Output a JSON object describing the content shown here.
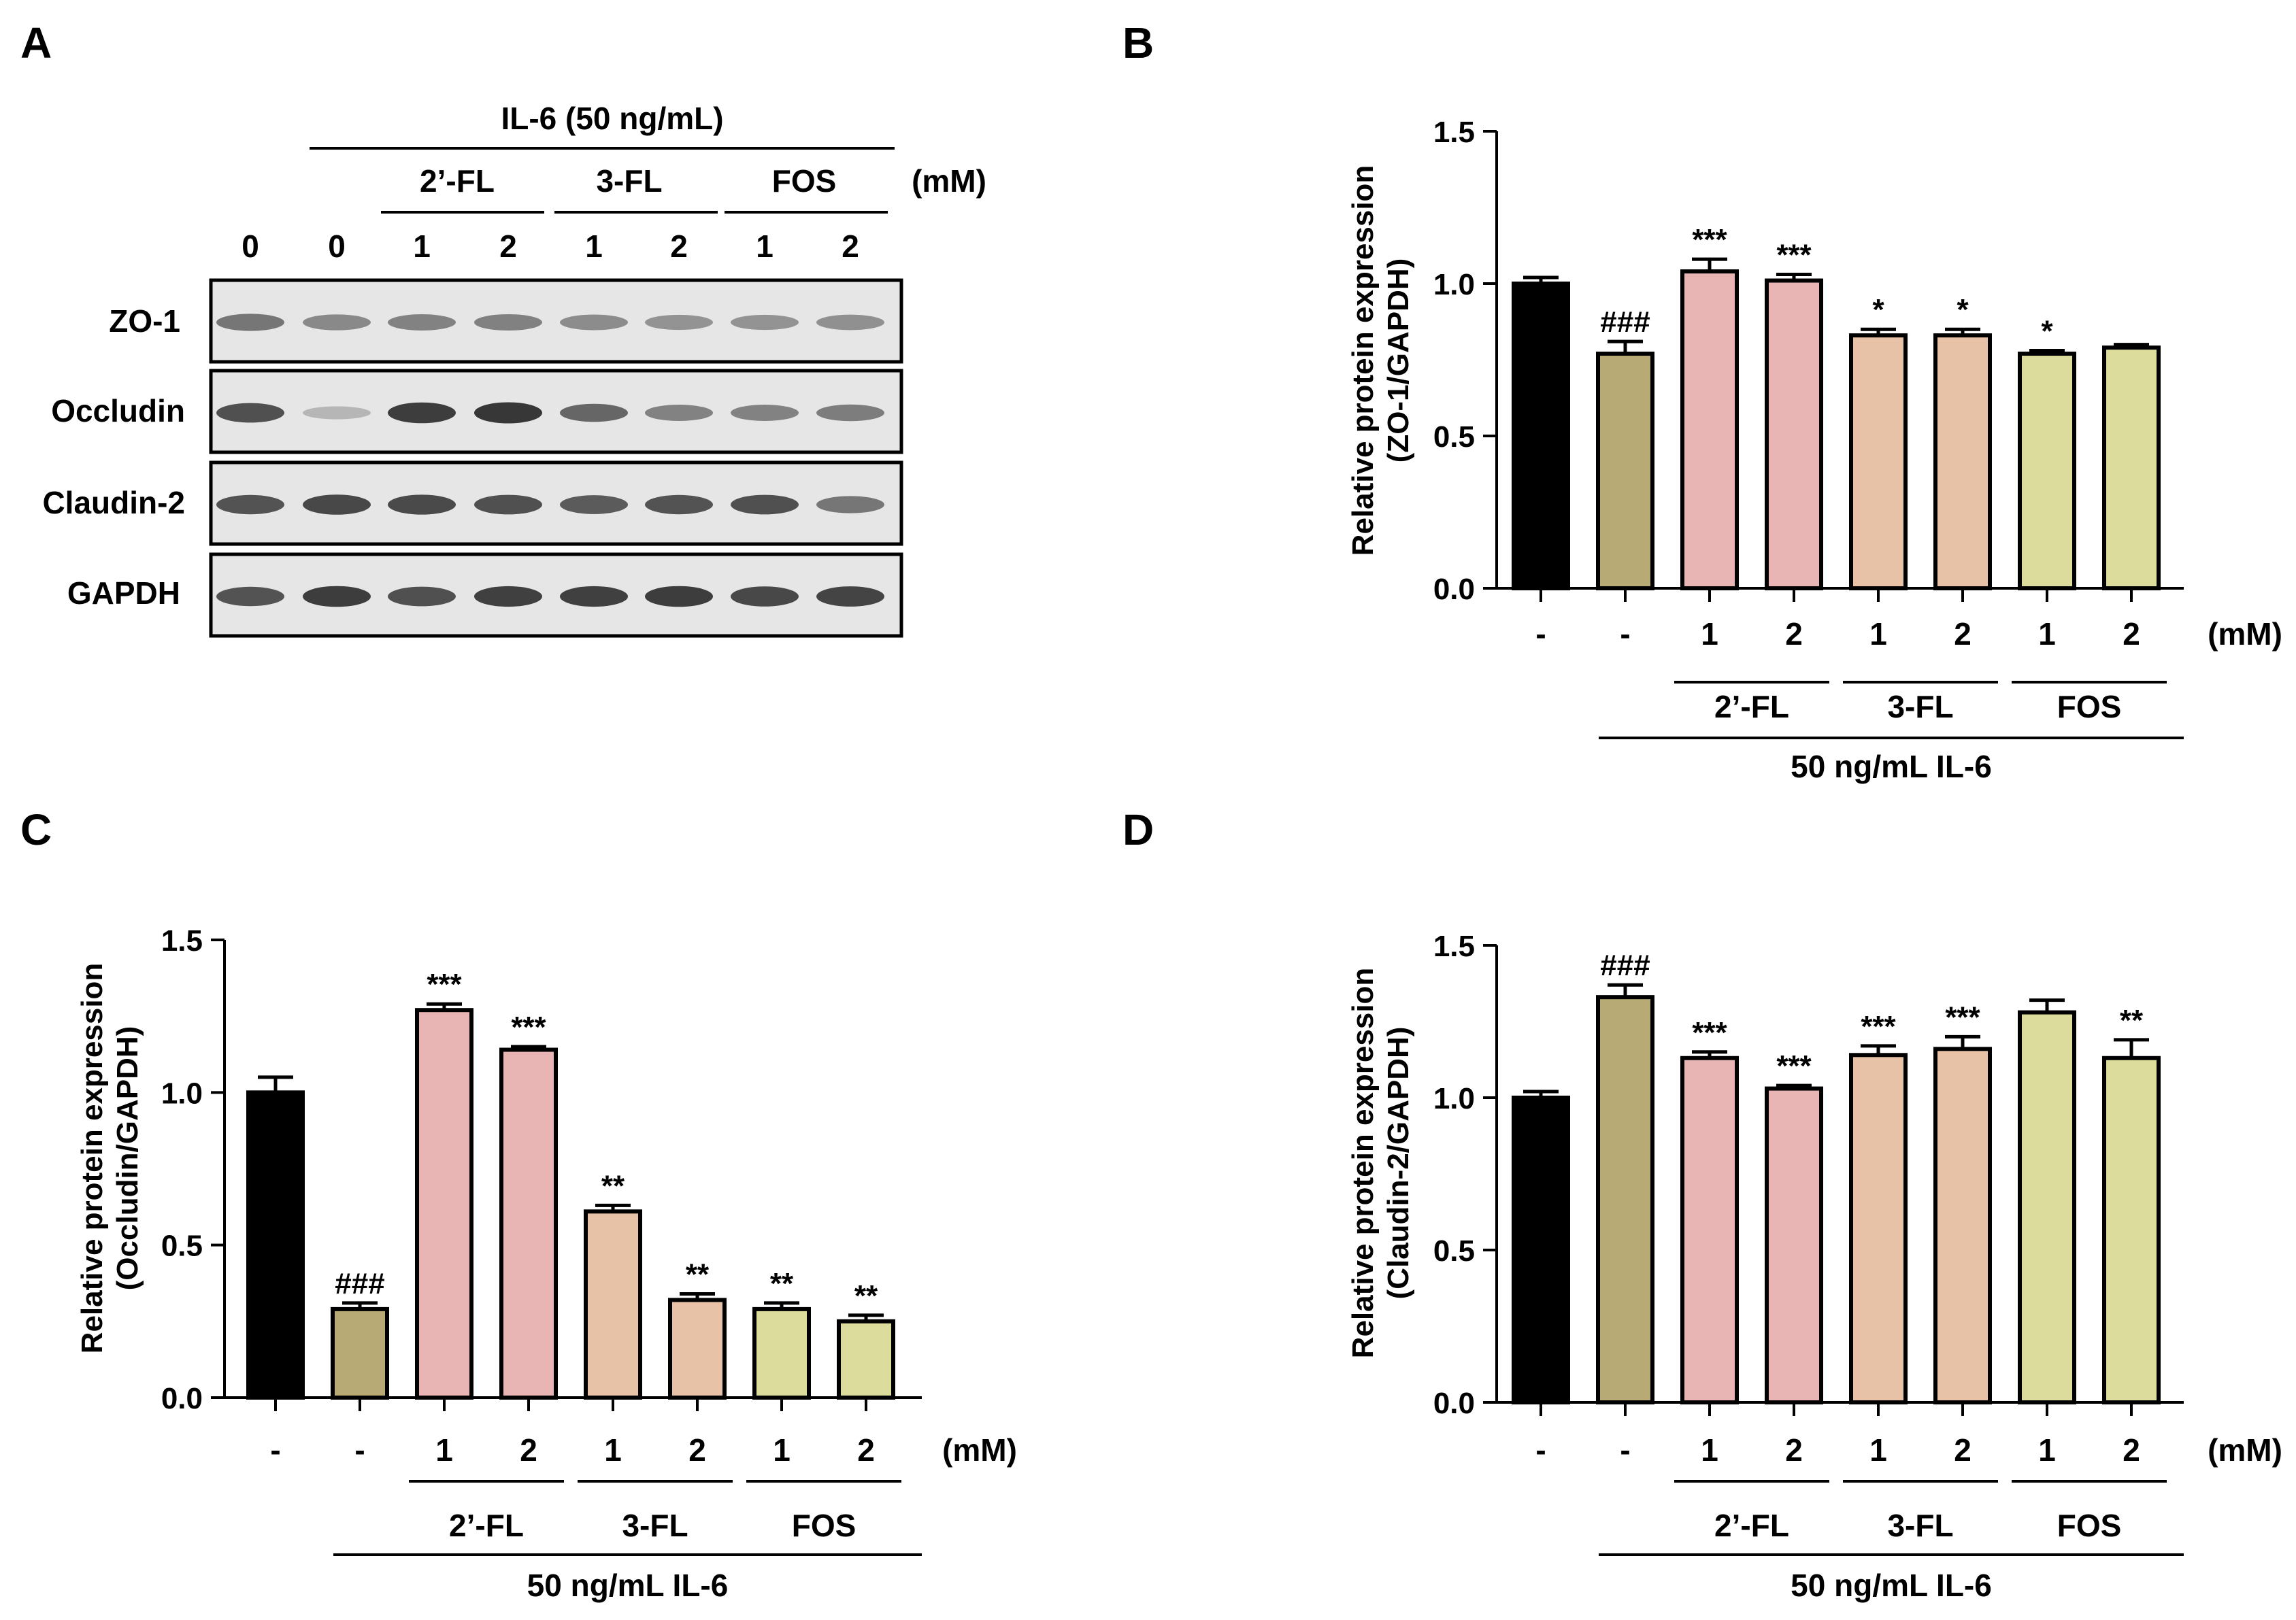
{
  "panel_a": {
    "letter": "A",
    "treatment_label": "IL-6 (50 ng/mL)",
    "unit_label": "(mM)",
    "groups": [
      "2’-FL",
      "3-FL",
      "FOS"
    ],
    "lane_labels": [
      "0",
      "0",
      "1",
      "2",
      "1",
      "2",
      "1",
      "2"
    ],
    "blots": [
      {
        "name": "ZO-1",
        "intensities": [
          0.62,
          0.52,
          0.55,
          0.56,
          0.5,
          0.46,
          0.46,
          0.48
        ]
      },
      {
        "name": "Occludin",
        "intensities": [
          0.82,
          0.28,
          0.92,
          0.95,
          0.7,
          0.55,
          0.55,
          0.58
        ]
      },
      {
        "name": "Claudin-2",
        "intensities": [
          0.8,
          0.86,
          0.85,
          0.82,
          0.76,
          0.8,
          0.82,
          0.62
        ]
      },
      {
        "name": "GAPDH",
        "intensities": [
          0.8,
          0.92,
          0.82,
          0.9,
          0.9,
          0.92,
          0.86,
          0.88
        ]
      }
    ]
  },
  "shared_axis": {
    "x_tick_labels": [
      "-",
      "-",
      "1",
      "2",
      "1",
      "2",
      "1",
      "2"
    ],
    "unit_label": "(mM)",
    "groups": [
      "2’-FL",
      "3-FL",
      "FOS"
    ],
    "treatment_label": "50 ng/mL IL-6",
    "bar_colors": [
      "#000000",
      "#b8aa75",
      "#e8b4b4",
      "#e8c2a7",
      "#dcdc9c"
    ],
    "bar_color_index": [
      0,
      1,
      2,
      2,
      3,
      3,
      4,
      4
    ]
  },
  "chart_data": [
    {
      "panel": "B",
      "type": "bar",
      "categories": [
        "-",
        "-",
        "1",
        "2",
        "1",
        "2",
        "1",
        "2"
      ],
      "values": [
        1.0,
        0.77,
        1.04,
        1.01,
        0.83,
        0.83,
        0.77,
        0.79
      ],
      "errors": [
        0.02,
        0.04,
        0.04,
        0.02,
        0.02,
        0.02,
        0.01,
        0.01
      ],
      "annotations": [
        "",
        "###",
        "***",
        "***",
        "*",
        "*",
        "*",
        ""
      ],
      "ylabel_line1": "Relative protein expression",
      "ylabel_line2": "(ZO-1/GAPDH)",
      "ylim": [
        0,
        1.5
      ],
      "yticks": [
        "0.0",
        "0.5",
        "1.0",
        "1.5"
      ]
    },
    {
      "panel": "C",
      "type": "bar",
      "categories": [
        "-",
        "-",
        "1",
        "2",
        "1",
        "2",
        "1",
        "2"
      ],
      "values": [
        1.0,
        0.29,
        1.27,
        1.14,
        0.61,
        0.32,
        0.29,
        0.25
      ],
      "errors": [
        0.05,
        0.02,
        0.02,
        0.01,
        0.02,
        0.02,
        0.02,
        0.02
      ],
      "annotations": [
        "",
        "###",
        "***",
        "***",
        "**",
        "**",
        "**",
        "**"
      ],
      "ylabel_line1": "Relative protein expression",
      "ylabel_line2": "(Occludin/GAPDH)",
      "ylim": [
        0,
        1.5
      ],
      "yticks": [
        "0.0",
        "0.5",
        "1.0",
        "1.5"
      ]
    },
    {
      "panel": "D",
      "type": "bar",
      "categories": [
        "-",
        "-",
        "1",
        "2",
        "1",
        "2",
        "1",
        "2"
      ],
      "values": [
        1.0,
        1.33,
        1.13,
        1.03,
        1.14,
        1.16,
        1.28,
        1.13
      ],
      "errors": [
        0.02,
        0.04,
        0.02,
        0.01,
        0.03,
        0.04,
        0.04,
        0.06
      ],
      "annotations": [
        "",
        "###",
        "***",
        "***",
        "***",
        "***",
        "",
        "**"
      ],
      "ylabel_line1": "Relative protein expression",
      "ylabel_line2": "(Claudin-2/GAPDH)",
      "ylim": [
        0,
        1.5
      ],
      "yticks": [
        "0.0",
        "0.5",
        "1.0",
        "1.5"
      ]
    }
  ]
}
